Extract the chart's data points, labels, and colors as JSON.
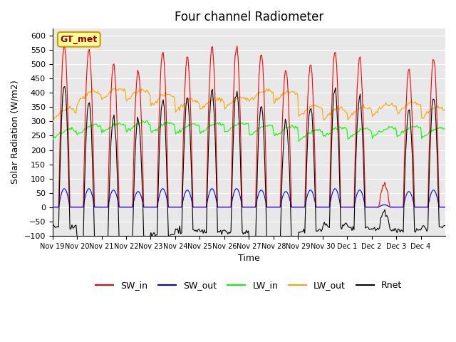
{
  "title": "Four channel Radiometer",
  "xlabel": "Time",
  "ylabel": "Solar Radiation (W/m2)",
  "ylim": [
    -100,
    625
  ],
  "yticks": [
    -100,
    -50,
    0,
    50,
    100,
    150,
    200,
    250,
    300,
    350,
    400,
    450,
    500,
    550,
    600
  ],
  "num_days": 16,
  "background_color": "#e8e8e8",
  "colors": {
    "SW_in": "#ff0000",
    "SW_out": "#0000ff",
    "LW_in": "#00ff00",
    "LW_out": "#ffa500",
    "Rnet": "#000000"
  },
  "legend_label": "GT_met",
  "legend_box_color": "#ffff99",
  "legend_box_border": "#cc9900",
  "xtick_positions": [
    0,
    1,
    2,
    3,
    4,
    5,
    6,
    7,
    8,
    9,
    10,
    11,
    12,
    13,
    14,
    15
  ],
  "xtick_labels": [
    "Nov 19",
    "Nov 20",
    "Nov 21",
    "Nov 22",
    "Nov 23",
    "Nov 24",
    "Nov 25",
    "Nov 26",
    "Nov 27",
    "Nov 28",
    "Nov 29",
    "Nov 30",
    "Dec 1",
    "Dec 2",
    "Dec 3",
    "Dec 4"
  ],
  "SW_in_peaks": [
    565,
    560,
    505,
    480,
    550,
    525,
    560,
    565,
    540,
    485,
    500,
    545,
    520,
    80,
    483,
    520
  ],
  "SW_out_peaks": [
    65,
    65,
    60,
    55,
    65,
    60,
    65,
    65,
    60,
    55,
    60,
    65,
    60,
    8,
    55,
    60
  ],
  "LW_in_base": [
    252,
    268,
    272,
    278,
    275,
    270,
    272,
    275,
    265,
    262,
    248,
    260,
    255,
    258,
    263,
    258
  ],
  "LW_out_base": [
    320,
    380,
    390,
    385,
    370,
    350,
    355,
    360,
    385,
    380,
    330,
    320,
    325,
    335,
    340,
    325
  ]
}
